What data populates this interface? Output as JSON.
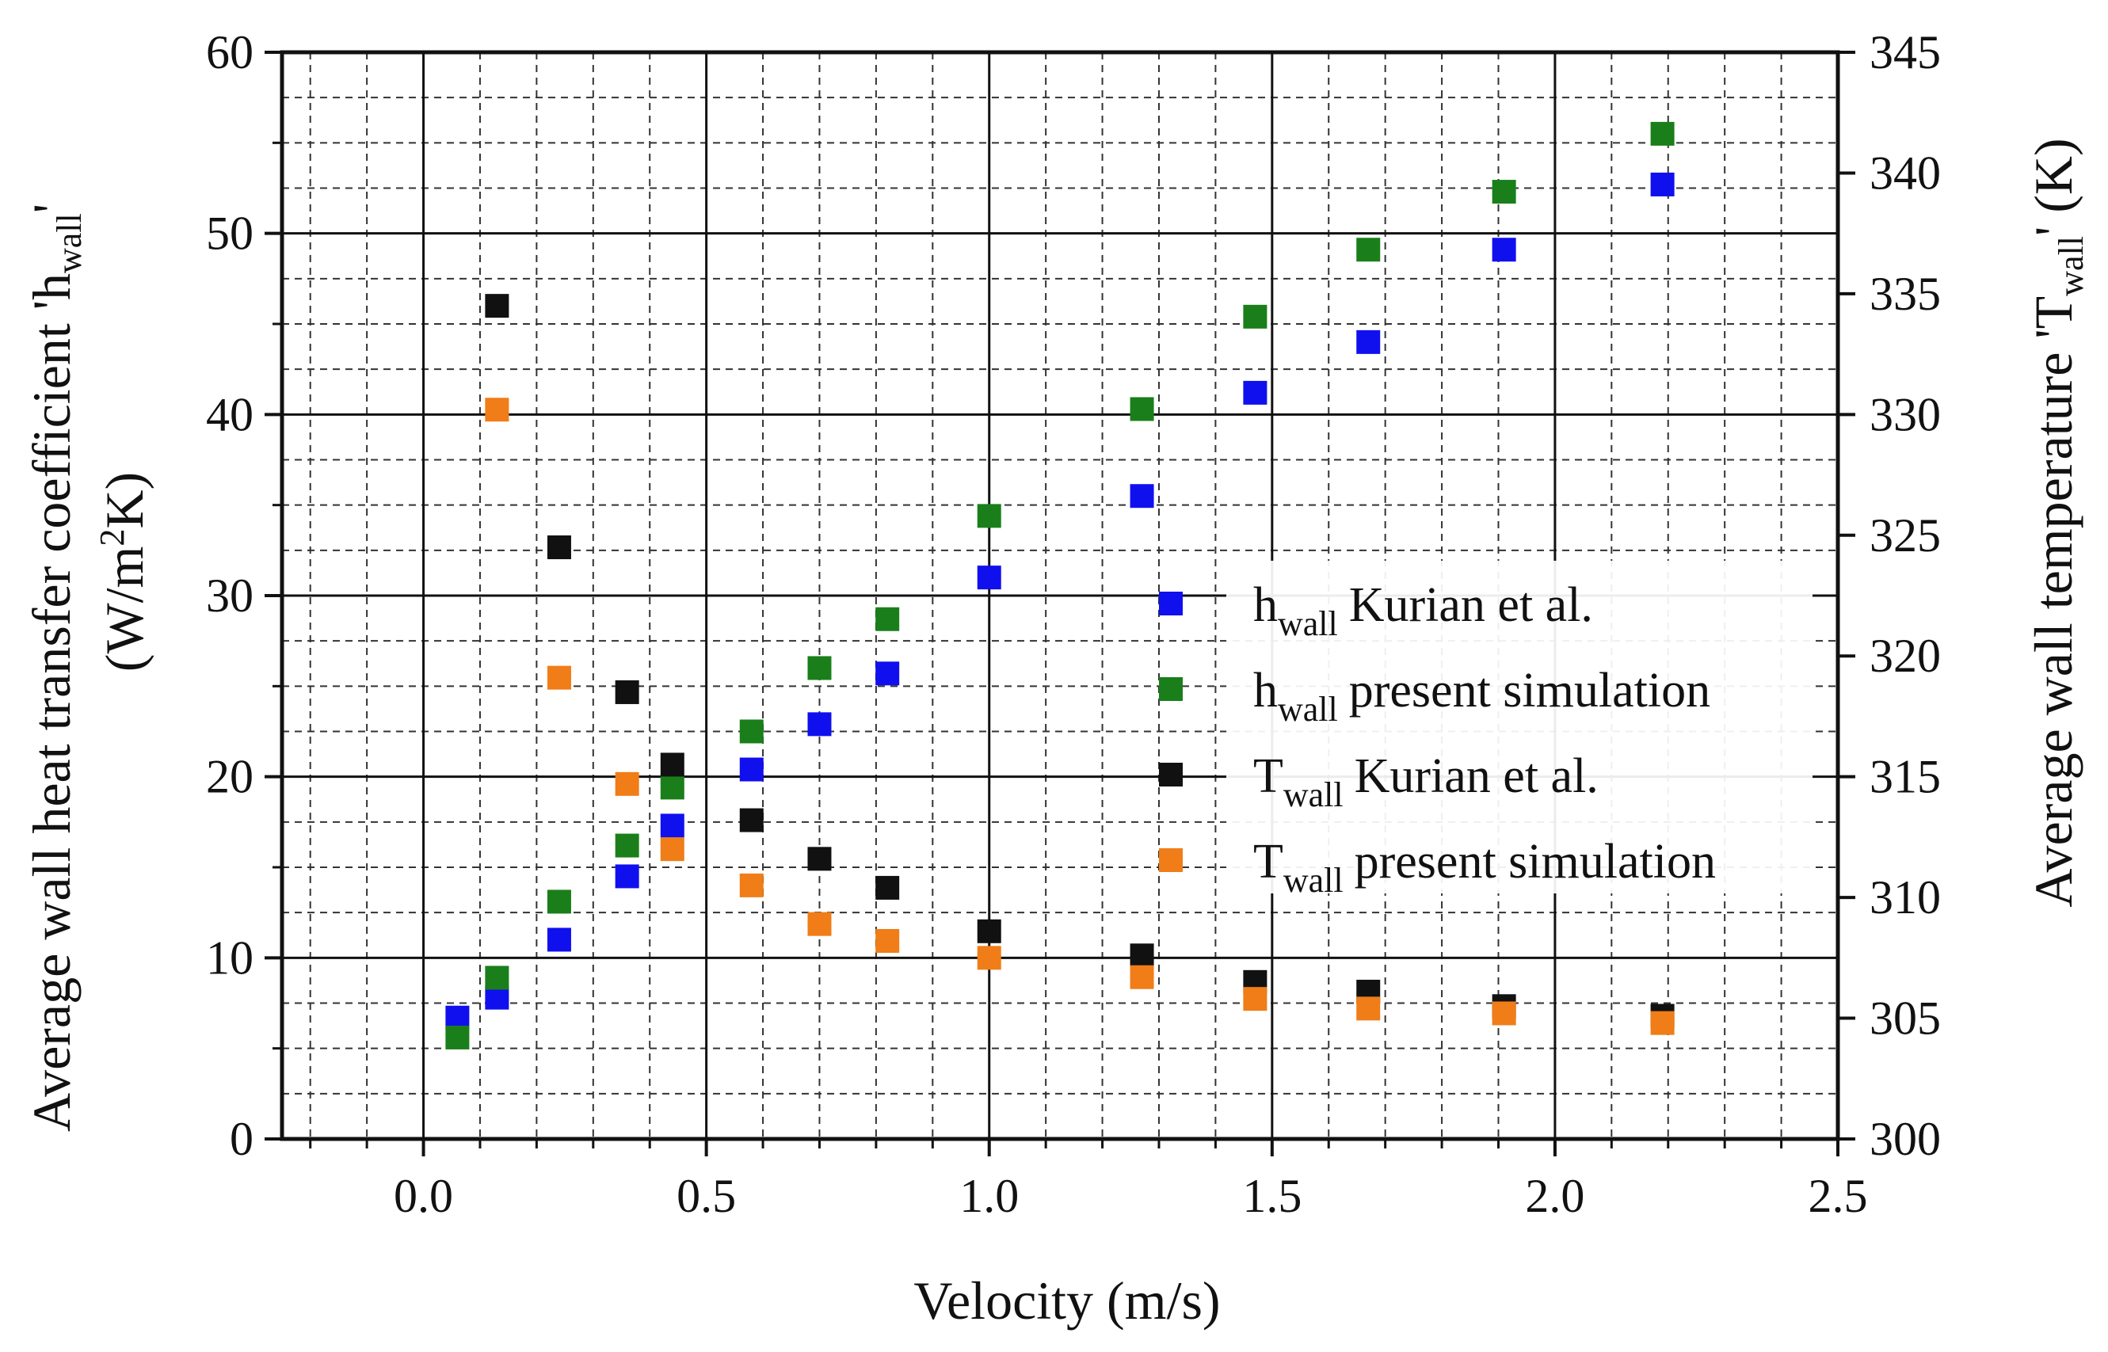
{
  "chart_data": {
    "type": "scatter",
    "xlabel": "Velocity (m/s)",
    "ylabel_left": {
      "line1_prefix": "Average wall heat transfer coefficient 'h",
      "line1_sub": "wall",
      "line1_suffix": "'",
      "line2_prefix": "(W/m",
      "line2_sup": "2",
      "line2_suffix": "K)"
    },
    "ylabel_right": {
      "prefix": "Average wall temperature 'T",
      "sub": "wall",
      "suffix": "' (K)"
    },
    "xlim": [
      -0.25,
      2.5
    ],
    "ylim_left": [
      0,
      60
    ],
    "ylim_right": [
      300,
      345
    ],
    "x_ticks": [
      0.0,
      0.5,
      1.0,
      1.5,
      2.0,
      2.5
    ],
    "x_tick_labels": [
      "0.0",
      "0.5",
      "1.0",
      "1.5",
      "2.0",
      "2.5"
    ],
    "y_left_ticks": [
      0,
      10,
      20,
      30,
      40,
      50,
      60
    ],
    "y_left_tick_labels": [
      "0",
      "10",
      "20",
      "30",
      "40",
      "50",
      "60"
    ],
    "y_right_ticks": [
      300,
      305,
      310,
      315,
      320,
      325,
      330,
      335,
      340,
      345
    ],
    "y_right_tick_labels": [
      "300",
      "305",
      "310",
      "315",
      "320",
      "325",
      "330",
      "335",
      "340",
      "345"
    ],
    "grid": "major solid, minor dashed",
    "legend_position": "right-center",
    "series": [
      {
        "name": "h_wall Kurian et al.",
        "legend_main": "h",
        "legend_sub": "wall",
        "legend_text": "Kurian et al.",
        "axis": "left",
        "color": "#1010ee",
        "points": [
          [
            0.06,
            6.7
          ],
          [
            0.13,
            7.8
          ],
          [
            0.24,
            11.0
          ],
          [
            0.36,
            14.5
          ],
          [
            0.44,
            17.3
          ],
          [
            0.58,
            20.4
          ],
          [
            0.7,
            22.9
          ],
          [
            0.82,
            25.7
          ],
          [
            1.0,
            31.0
          ],
          [
            1.27,
            35.5
          ],
          [
            1.47,
            41.2
          ],
          [
            1.67,
            44.0
          ],
          [
            1.91,
            49.1
          ],
          [
            2.19,
            52.7
          ]
        ]
      },
      {
        "name": "h_wall present simulation",
        "legend_main": "h",
        "legend_sub": "wall",
        "legend_text": "present simulation",
        "axis": "left",
        "color": "#1a7f1a",
        "points": [
          [
            0.06,
            5.6
          ],
          [
            0.13,
            8.9
          ],
          [
            0.24,
            13.1
          ],
          [
            0.36,
            16.2
          ],
          [
            0.44,
            19.4
          ],
          [
            0.58,
            22.5
          ],
          [
            0.7,
            26.0
          ],
          [
            0.82,
            28.7
          ],
          [
            1.0,
            34.4
          ],
          [
            1.27,
            40.3
          ],
          [
            1.47,
            45.4
          ],
          [
            1.67,
            49.1
          ],
          [
            1.91,
            52.3
          ],
          [
            2.19,
            55.5
          ]
        ]
      },
      {
        "name": "T_wall Kurian et al.",
        "legend_main": "T",
        "legend_sub": "wall",
        "legend_text": "Kurian et al.",
        "axis": "right",
        "color": "#111111",
        "points": [
          [
            0.13,
            334.5
          ],
          [
            0.24,
            324.5
          ],
          [
            0.36,
            318.5
          ],
          [
            0.44,
            315.5
          ],
          [
            0.58,
            313.2
          ],
          [
            0.7,
            311.6
          ],
          [
            0.82,
            310.4
          ],
          [
            1.0,
            308.6
          ],
          [
            1.27,
            307.6
          ],
          [
            1.47,
            306.5
          ],
          [
            1.67,
            306.1
          ],
          [
            1.91,
            305.5
          ],
          [
            2.19,
            305.1
          ]
        ]
      },
      {
        "name": "T_wall present simulation",
        "legend_main": "T",
        "legend_sub": "wall",
        "legend_text": "present simulation",
        "axis": "right",
        "color": "#f07d17",
        "points": [
          [
            0.13,
            330.2
          ],
          [
            0.24,
            319.1
          ],
          [
            0.36,
            314.7
          ],
          [
            0.44,
            312.0
          ],
          [
            0.58,
            310.5
          ],
          [
            0.7,
            308.9
          ],
          [
            0.82,
            308.2
          ],
          [
            1.0,
            307.5
          ],
          [
            1.27,
            306.7
          ],
          [
            1.47,
            305.8
          ],
          [
            1.67,
            305.4
          ],
          [
            1.91,
            305.2
          ],
          [
            2.19,
            304.8
          ]
        ]
      }
    ]
  }
}
